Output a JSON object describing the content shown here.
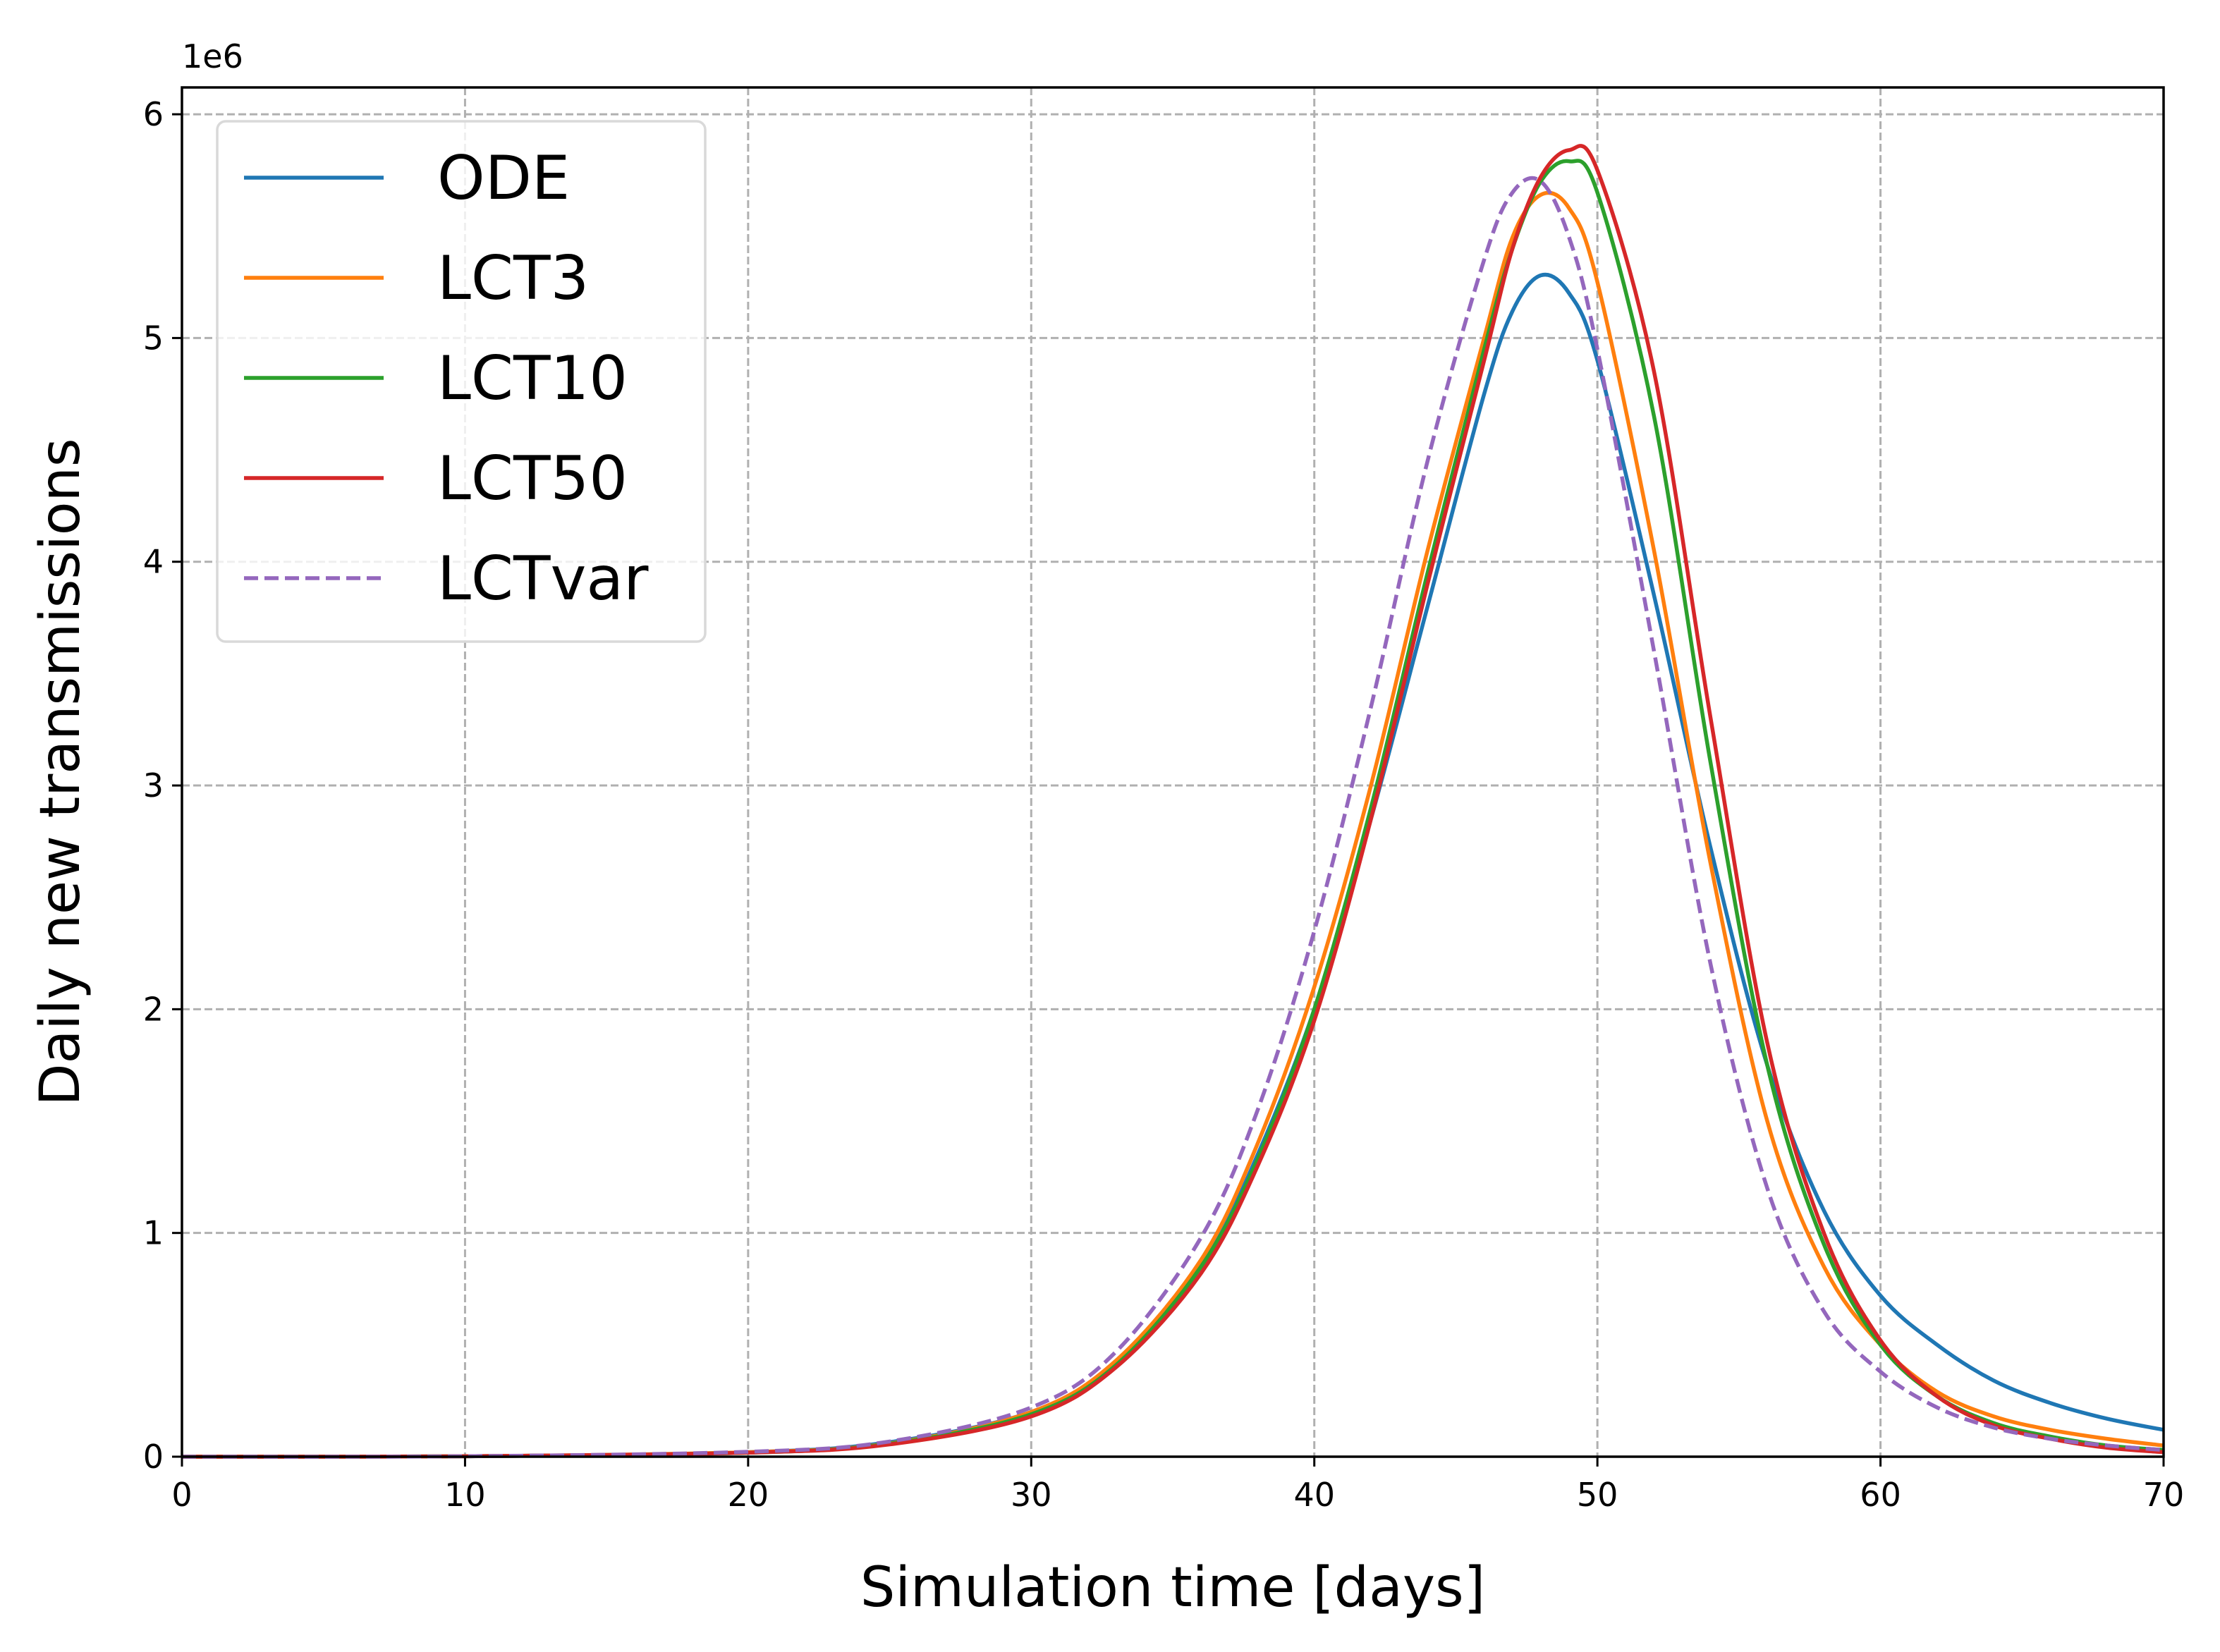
{
  "chart_data": {
    "type": "line",
    "title": "",
    "xlabel": "Simulation time [days]",
    "ylabel": "Daily new transmissions",
    "y_offset_label": "1e6",
    "y_scale": 1000000,
    "xlim": [
      0,
      70
    ],
    "ylim": [
      0,
      6.12
    ],
    "xticks": [
      0,
      10,
      20,
      30,
      40,
      50,
      60,
      70
    ],
    "yticks": [
      0,
      1,
      2,
      3,
      4,
      5,
      6
    ],
    "grid": true,
    "legend_position": "upper-left",
    "series": [
      {
        "name": "ODE",
        "color": "#1f77b4",
        "dash": "solid",
        "x": [
          0,
          10,
          20,
          25,
          30,
          33,
          36,
          38,
          40,
          42,
          44,
          46,
          47,
          48,
          49,
          50,
          52,
          54,
          56,
          58,
          60,
          62,
          64,
          66,
          68,
          70
        ],
        "y": [
          0,
          0.002,
          0.02,
          0.065,
          0.2,
          0.42,
          0.85,
          1.35,
          2.0,
          2.85,
          3.8,
          4.75,
          5.12,
          5.28,
          5.2,
          4.9,
          3.85,
          2.72,
          1.75,
          1.1,
          0.72,
          0.5,
          0.34,
          0.24,
          0.17,
          0.12
        ]
      },
      {
        "name": "LCT3",
        "color": "#ff7f0e",
        "dash": "solid",
        "x": [
          0,
          10,
          20,
          25,
          30,
          33,
          36,
          38,
          40,
          42,
          44,
          46,
          47,
          48,
          49,
          50,
          52,
          54,
          56,
          58,
          60,
          62,
          64,
          66,
          68,
          70
        ],
        "y": [
          0,
          0.002,
          0.02,
          0.06,
          0.2,
          0.43,
          0.88,
          1.4,
          2.1,
          3.0,
          4.05,
          5.0,
          5.45,
          5.64,
          5.58,
          5.25,
          4.05,
          2.65,
          1.5,
          0.85,
          0.5,
          0.29,
          0.18,
          0.12,
          0.08,
          0.05
        ]
      },
      {
        "name": "LCT10",
        "color": "#2ca02c",
        "dash": "solid",
        "x": [
          0,
          10,
          20,
          25,
          30,
          33,
          36,
          38,
          40,
          42,
          44,
          46,
          47,
          48,
          49,
          50,
          52,
          54,
          56,
          58,
          60,
          62,
          64,
          66,
          68,
          70
        ],
        "y": [
          0,
          0.002,
          0.018,
          0.058,
          0.19,
          0.41,
          0.85,
          1.33,
          2.0,
          2.9,
          3.95,
          4.95,
          5.4,
          5.7,
          5.79,
          5.65,
          4.65,
          3.1,
          1.75,
          0.95,
          0.5,
          0.27,
          0.15,
          0.09,
          0.05,
          0.03
        ]
      },
      {
        "name": "LCT50",
        "color": "#d62728",
        "dash": "solid",
        "x": [
          0,
          10,
          20,
          25,
          30,
          33,
          36,
          38,
          40,
          42,
          44,
          46,
          47,
          48,
          49,
          50,
          52,
          54,
          56,
          58,
          60,
          62,
          64,
          66,
          68,
          70
        ],
        "y": [
          0,
          0.002,
          0.018,
          0.055,
          0.18,
          0.4,
          0.82,
          1.3,
          1.95,
          2.85,
          3.9,
          4.9,
          5.4,
          5.72,
          5.84,
          5.75,
          4.85,
          3.3,
          1.85,
          1.0,
          0.52,
          0.27,
          0.14,
          0.08,
          0.04,
          0.02
        ]
      },
      {
        "name": "LCTvar",
        "color": "#9467bd",
        "dash": "dashed",
        "x": [
          0,
          10,
          20,
          25,
          30,
          33,
          36,
          38,
          40,
          42,
          44,
          46,
          47,
          48,
          49,
          50,
          52,
          54,
          56,
          58,
          60,
          62,
          64,
          66,
          68,
          70
        ],
        "y": [
          0,
          0.002,
          0.022,
          0.068,
          0.22,
          0.47,
          0.98,
          1.55,
          2.35,
          3.35,
          4.45,
          5.35,
          5.65,
          5.7,
          5.45,
          4.95,
          3.6,
          2.2,
          1.2,
          0.65,
          0.38,
          0.22,
          0.13,
          0.08,
          0.05,
          0.03
        ]
      }
    ]
  }
}
